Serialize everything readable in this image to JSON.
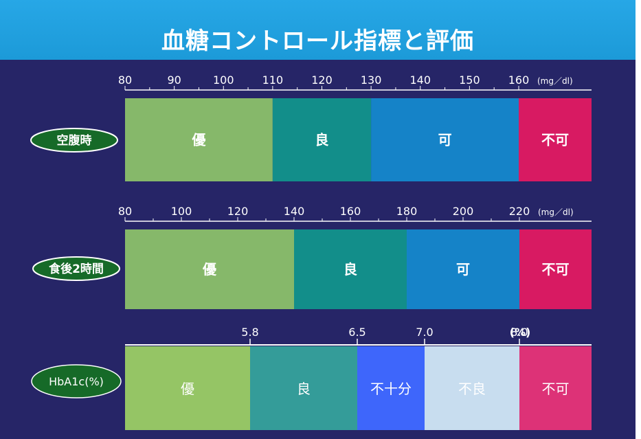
{
  "title": "血糖コントロール指標と評価",
  "colors": {
    "background": "#262567",
    "header": "#1c9ad8",
    "pill_fill": "#166a28",
    "excellent": "#86b86a",
    "good": "#128e8a",
    "fair": "#1583c8",
    "poor": "#d81a62"
  },
  "chart_data": [
    {
      "type": "bar",
      "row_label": "空腹時",
      "unit": "(mg／dl)",
      "axis_ticks": [
        80,
        90,
        100,
        110,
        120,
        130,
        140,
        150,
        160
      ],
      "xlim": [
        80,
        175
      ],
      "segments": [
        {
          "label": "優",
          "from": 80,
          "to": 110,
          "color": "#86b86a"
        },
        {
          "label": "良",
          "from": 110,
          "to": 130,
          "color": "#128e8a"
        },
        {
          "label": "可",
          "from": 130,
          "to": 160,
          "color": "#1583c8"
        },
        {
          "label": "不可",
          "from": 160,
          "to": 175,
          "color": "#d81a62"
        }
      ]
    },
    {
      "type": "bar",
      "row_label": "食後2時間",
      "unit": "(mg／dl)",
      "axis_ticks": [
        80,
        100,
        120,
        140,
        160,
        180,
        200,
        220
      ],
      "xlim": [
        80,
        245
      ],
      "segments": [
        {
          "label": "優",
          "from": 80,
          "to": 140,
          "color": "#86b86a"
        },
        {
          "label": "良",
          "from": 140,
          "to": 180,
          "color": "#128e8a"
        },
        {
          "label": "可",
          "from": 180,
          "to": 220,
          "color": "#1583c8"
        },
        {
          "label": "不可",
          "from": 220,
          "to": 245,
          "color": "#d81a62"
        }
      ]
    },
    {
      "type": "bar",
      "row_label": "HbA1c(%)",
      "unit": "(%)",
      "axis_ticks": [
        5.8,
        6.5,
        7.0,
        8.0
      ],
      "tick_labels": [
        "5.8",
        "6.5",
        "7.0",
        "8.0"
      ],
      "segments": [
        {
          "label": "優",
          "to": 5.8,
          "color": "#95c565"
        },
        {
          "label": "良",
          "from": 5.8,
          "to": 6.5,
          "color": "#349c99"
        },
        {
          "label": "不十分",
          "from": 6.5,
          "to": 7.0,
          "color": "#3e66fb"
        },
        {
          "label": "不良",
          "from": 7.0,
          "to": 8.0,
          "color": "#c8ddef"
        },
        {
          "label": "不可",
          "from": 8.0,
          "color": "#dd3277"
        }
      ]
    }
  ]
}
